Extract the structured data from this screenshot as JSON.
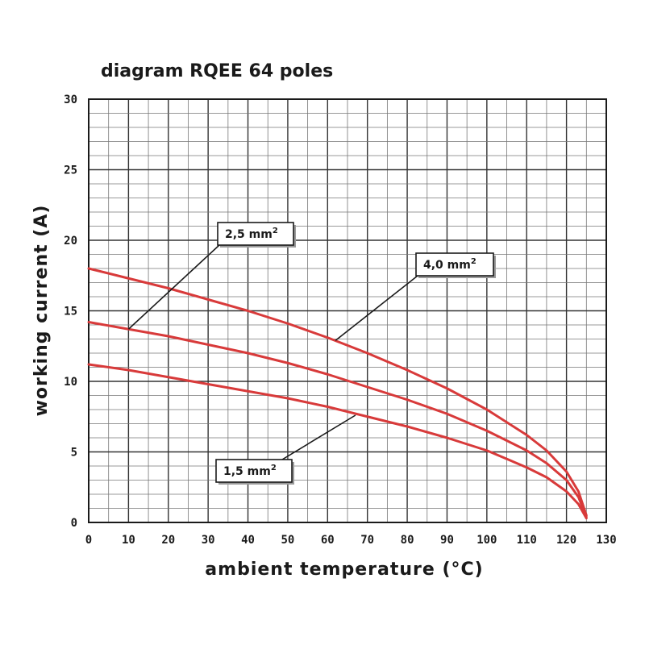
{
  "chart_data": {
    "type": "line",
    "title": "diagram RQEE 64 poles",
    "xlabel": "ambient temperature (°C)",
    "ylabel": "working current (A)",
    "xlim": [
      0,
      130
    ],
    "ylim": [
      0,
      30
    ],
    "x_ticks": [
      0,
      10,
      20,
      30,
      40,
      50,
      60,
      70,
      80,
      90,
      100,
      110,
      120,
      130
    ],
    "y_ticks": [
      0,
      5,
      10,
      15,
      20,
      25,
      30
    ],
    "x_tick_labels": [
      "0",
      "10",
      "20",
      "30",
      "40",
      "50",
      "60",
      "70",
      "80",
      "90",
      "100",
      "110",
      "120",
      "130"
    ],
    "y_tick_labels": [
      "0",
      "5",
      "10",
      "15",
      "20",
      "25",
      "30"
    ],
    "grid": true,
    "line_color": "#d83a3a",
    "series": [
      {
        "name": "4,0 mm²",
        "x": [
          0,
          10,
          20,
          30,
          40,
          50,
          60,
          70,
          80,
          90,
          100,
          110,
          115,
          120,
          123,
          125
        ],
        "y": [
          18.0,
          17.3,
          16.6,
          15.8,
          15.0,
          14.1,
          13.1,
          12.0,
          10.8,
          9.5,
          8.0,
          6.2,
          5.1,
          3.6,
          2.2,
          0.5
        ]
      },
      {
        "name": "2,5 mm²",
        "x": [
          0,
          10,
          20,
          30,
          40,
          50,
          60,
          70,
          80,
          90,
          100,
          110,
          115,
          120,
          123,
          125
        ],
        "y": [
          14.2,
          13.7,
          13.2,
          12.6,
          12.0,
          11.3,
          10.5,
          9.6,
          8.7,
          7.7,
          6.5,
          5.1,
          4.2,
          3.0,
          1.8,
          0.4
        ]
      },
      {
        "name": "1,5 mm²",
        "x": [
          0,
          10,
          20,
          30,
          40,
          50,
          60,
          70,
          80,
          90,
          100,
          110,
          115,
          120,
          123,
          125
        ],
        "y": [
          11.2,
          10.8,
          10.3,
          9.8,
          9.3,
          8.8,
          8.2,
          7.5,
          6.8,
          6.0,
          5.1,
          3.9,
          3.2,
          2.2,
          1.3,
          0.3
        ]
      }
    ],
    "callouts": [
      {
        "label": "2,5 mm",
        "sup": "2",
        "series": "2,5 mm²",
        "point": [
          10,
          13.7
        ]
      },
      {
        "label": "4,0 mm",
        "sup": "2",
        "series": "4,0 mm²",
        "point": [
          62,
          12.9
        ]
      },
      {
        "label": "1,5 mm",
        "sup": "2",
        "series": "1,5 mm²",
        "point": [
          67,
          7.6
        ]
      }
    ]
  }
}
